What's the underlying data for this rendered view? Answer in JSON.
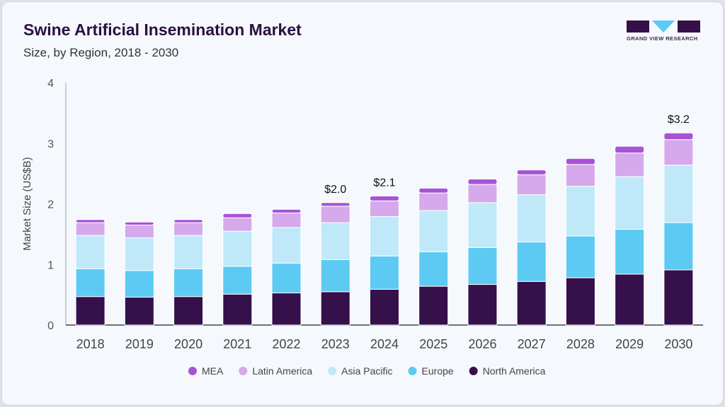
{
  "chart_data": {
    "type": "bar",
    "stacked": true,
    "title": "Swine Artificial Insemination Market",
    "subtitle": "Size, by Region, 2018 - 2030",
    "ylabel": "Market Size (US$B)",
    "xlabel": "",
    "ylim": [
      0,
      4
    ],
    "yticks": [
      "0",
      "1",
      "2",
      "3",
      "4"
    ],
    "categories": [
      "2018",
      "2019",
      "2020",
      "2021",
      "2022",
      "2023",
      "2024",
      "2025",
      "2026",
      "2027",
      "2028",
      "2029",
      "2030"
    ],
    "series": [
      {
        "name": "North America",
        "color": "#35104a",
        "values": [
          0.47,
          0.46,
          0.47,
          0.51,
          0.53,
          0.55,
          0.59,
          0.64,
          0.67,
          0.72,
          0.78,
          0.84,
          0.91
        ]
      },
      {
        "name": "Europe",
        "color": "#5ccaf3",
        "values": [
          0.46,
          0.44,
          0.46,
          0.46,
          0.49,
          0.53,
          0.55,
          0.57,
          0.61,
          0.65,
          0.69,
          0.74,
          0.78
        ]
      },
      {
        "name": "Asia Pacific",
        "color": "#bfe9f9",
        "values": [
          0.55,
          0.54,
          0.55,
          0.58,
          0.59,
          0.61,
          0.65,
          0.68,
          0.74,
          0.78,
          0.82,
          0.87,
          0.95
        ]
      },
      {
        "name": "Latin America",
        "color": "#d5a9eb",
        "values": [
          0.21,
          0.21,
          0.21,
          0.22,
          0.24,
          0.27,
          0.26,
          0.29,
          0.3,
          0.33,
          0.36,
          0.39,
          0.42
        ]
      },
      {
        "name": "MEA",
        "color": "#a753d6",
        "values": [
          0.05,
          0.05,
          0.05,
          0.07,
          0.06,
          0.06,
          0.08,
          0.08,
          0.09,
          0.08,
          0.1,
          0.11,
          0.11
        ]
      }
    ],
    "annotations": [
      {
        "category": "2023",
        "label": "$2.0"
      },
      {
        "category": "2024",
        "label": "$2.1"
      },
      {
        "category": "2030",
        "label": "$3.2"
      }
    ],
    "legend": {
      "placement": "bottom",
      "order": [
        "MEA",
        "Latin America",
        "Asia Pacific",
        "Europe",
        "North America"
      ]
    },
    "grid": false
  },
  "brand": {
    "logo_text": "GRAND VIEW RESEARCH",
    "color": "#35104a",
    "accent": "#5ccaf3"
  }
}
